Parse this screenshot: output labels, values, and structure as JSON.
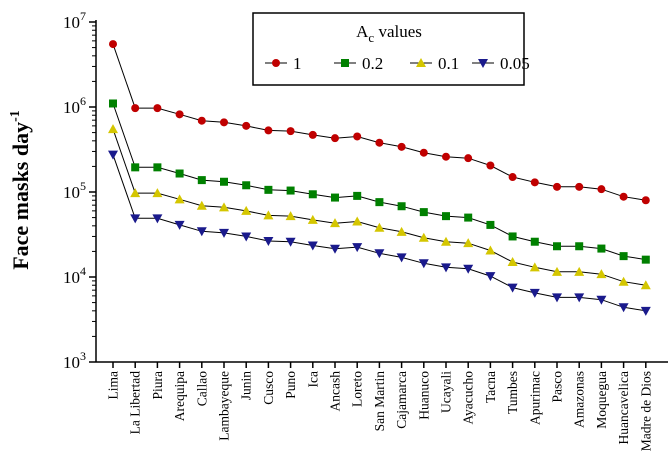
{
  "chart_data": {
    "type": "line",
    "ylabel": "Face masks day",
    "ylabel_superscript": "-1",
    "y_scale": "log",
    "ylim": [
      1000,
      10000000
    ],
    "y_ticks": [
      {
        "base": "10",
        "exp": "3",
        "value": 1000
      },
      {
        "base": "10",
        "exp": "4",
        "value": 10000
      },
      {
        "base": "10",
        "exp": "5",
        "value": 100000
      },
      {
        "base": "10",
        "exp": "6",
        "value": 1000000
      },
      {
        "base": "10",
        "exp": "7",
        "value": 10000000
      }
    ],
    "categories": [
      "Lima",
      "La Libertad",
      "Piura",
      "Arequipa",
      "Callao",
      "Lambayeque",
      "Junin",
      "Cusco",
      "Puno",
      "Ica",
      "Ancash",
      "Loreto",
      "San Martin",
      "Cajamarca",
      "Huanuco",
      "Ucayali",
      "Ayacucho",
      "Tacna",
      "Tumbes",
      "Apurimac",
      "Pasco",
      "Amazonas",
      "Moquegua",
      "Huancavelica",
      "Madre de Dios"
    ],
    "legend": {
      "title_main": "A",
      "title_sub": "c",
      "title_rest": " values",
      "placement": "top-center"
    },
    "series": [
      {
        "name": "1",
        "color": "#c00000",
        "marker": "circle",
        "values": [
          5500000,
          970000,
          970000,
          820000,
          690000,
          660000,
          600000,
          530000,
          520000,
          470000,
          430000,
          450000,
          380000,
          340000,
          290000,
          260000,
          250000,
          205000,
          150000,
          130000,
          115000,
          115000,
          108000,
          88000,
          80000
        ]
      },
      {
        "name": "0.2",
        "color": "#008000",
        "marker": "square",
        "values": [
          1100000,
          195000,
          195000,
          165000,
          138000,
          132000,
          120000,
          106000,
          104000,
          94000,
          86000,
          90000,
          76000,
          68000,
          58000,
          52000,
          50000,
          41000,
          30000,
          26000,
          23000,
          23000,
          21600,
          17600,
          16000
        ]
      },
      {
        "name": "0.1",
        "color": "#d4c600",
        "marker": "triangle-up",
        "values": [
          550000,
          97000,
          97000,
          82000,
          69000,
          66000,
          60000,
          53000,
          52000,
          47000,
          43000,
          45000,
          38000,
          34000,
          29000,
          26000,
          25000,
          20500,
          15000,
          13000,
          11500,
          11500,
          10800,
          8800,
          8000
        ]
      },
      {
        "name": "0.05",
        "color": "#1a1a8c",
        "marker": "triangle-down",
        "values": [
          275000,
          49000,
          49000,
          41000,
          34500,
          33000,
          30000,
          26500,
          26000,
          23500,
          21500,
          22500,
          19000,
          17000,
          14500,
          13000,
          12500,
          10250,
          7500,
          6500,
          5750,
          5750,
          5400,
          4400,
          4000
        ]
      }
    ]
  }
}
